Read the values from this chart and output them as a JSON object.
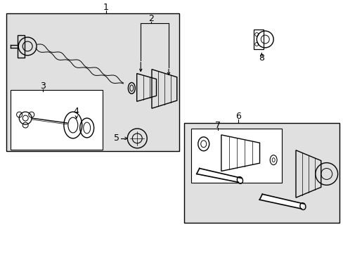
{
  "bg_color": "#ffffff",
  "diagram_bg": "#e8e8e8",
  "box_edge": "#000000",
  "line_color": "#000000",
  "text_color": "#000000",
  "fig_width": 4.89,
  "fig_height": 3.6,
  "dpi": 100
}
